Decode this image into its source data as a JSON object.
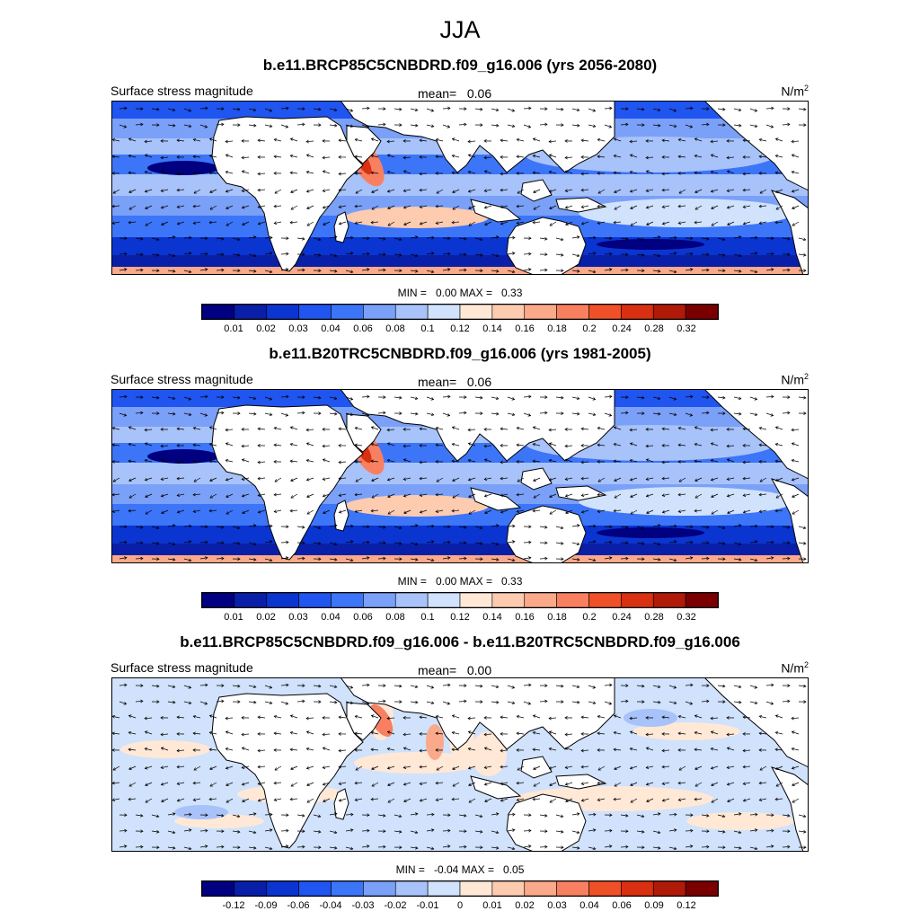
{
  "title": "JJA",
  "colors": {
    "cool": [
      "#000080",
      "#0a1fa8",
      "#0b35d0",
      "#2055f0",
      "#3c75f8",
      "#7aa0f8",
      "#a8c2fa",
      "#d0e2fc"
    ],
    "warm": [
      "#ffe8d6",
      "#fdcbb0",
      "#faa98a",
      "#f88060",
      "#f05028",
      "#d83010",
      "#b01a08",
      "#7a0000"
    ],
    "land": "#ffffff",
    "coast": "#000000"
  },
  "panels": [
    {
      "title": "b.e11.BRCP85C5CNBDRD.f09_g16.006 (yrs 2056-2080)",
      "field": "Surface stress magnitude",
      "mean_label": "mean=",
      "mean": "0.06",
      "units_base": "N/m",
      "units_exp": "2",
      "min_label": "MIN =",
      "min": "0.00",
      "max_label": "MAX =",
      "max": "0.33",
      "map_type": "abs",
      "colorbar_ticks": [
        "0.01",
        "0.02",
        "0.03",
        "0.04",
        "0.06",
        "0.08",
        "0.1",
        "0.12",
        "0.14",
        "0.16",
        "0.18",
        "0.2",
        "0.24",
        "0.28",
        "0.32"
      ]
    },
    {
      "title": "b.e11.B20TRC5CNBDRD.f09_g16.006 (yrs 1981-2005)",
      "field": "Surface stress magnitude",
      "mean_label": "mean=",
      "mean": "0.06",
      "units_base": "N/m",
      "units_exp": "2",
      "min_label": "MIN =",
      "min": "0.00",
      "max_label": "MAX =",
      "max": "0.33",
      "map_type": "abs",
      "colorbar_ticks": [
        "0.01",
        "0.02",
        "0.03",
        "0.04",
        "0.06",
        "0.08",
        "0.1",
        "0.12",
        "0.14",
        "0.16",
        "0.18",
        "0.2",
        "0.24",
        "0.28",
        "0.32"
      ]
    },
    {
      "title": "b.e11.BRCP85C5CNBDRD.f09_g16.006 - b.e11.B20TRC5CNBDRD.f09_g16.006",
      "field": "Surface stress magnitude",
      "mean_label": "mean=",
      "mean": "0.00",
      "units_base": "N/m",
      "units_exp": "2",
      "min_label": "MIN =",
      "min": "-0.04",
      "max_label": "MAX =",
      "max": "0.05",
      "map_type": "diff",
      "colorbar_ticks": [
        "-0.12",
        "-0.09",
        "-0.06",
        "-0.04",
        "-0.03",
        "-0.02",
        "-0.01",
        "0",
        "0.01",
        "0.02",
        "0.03",
        "0.04",
        "0.06",
        "0.09",
        "0.12"
      ]
    }
  ]
}
